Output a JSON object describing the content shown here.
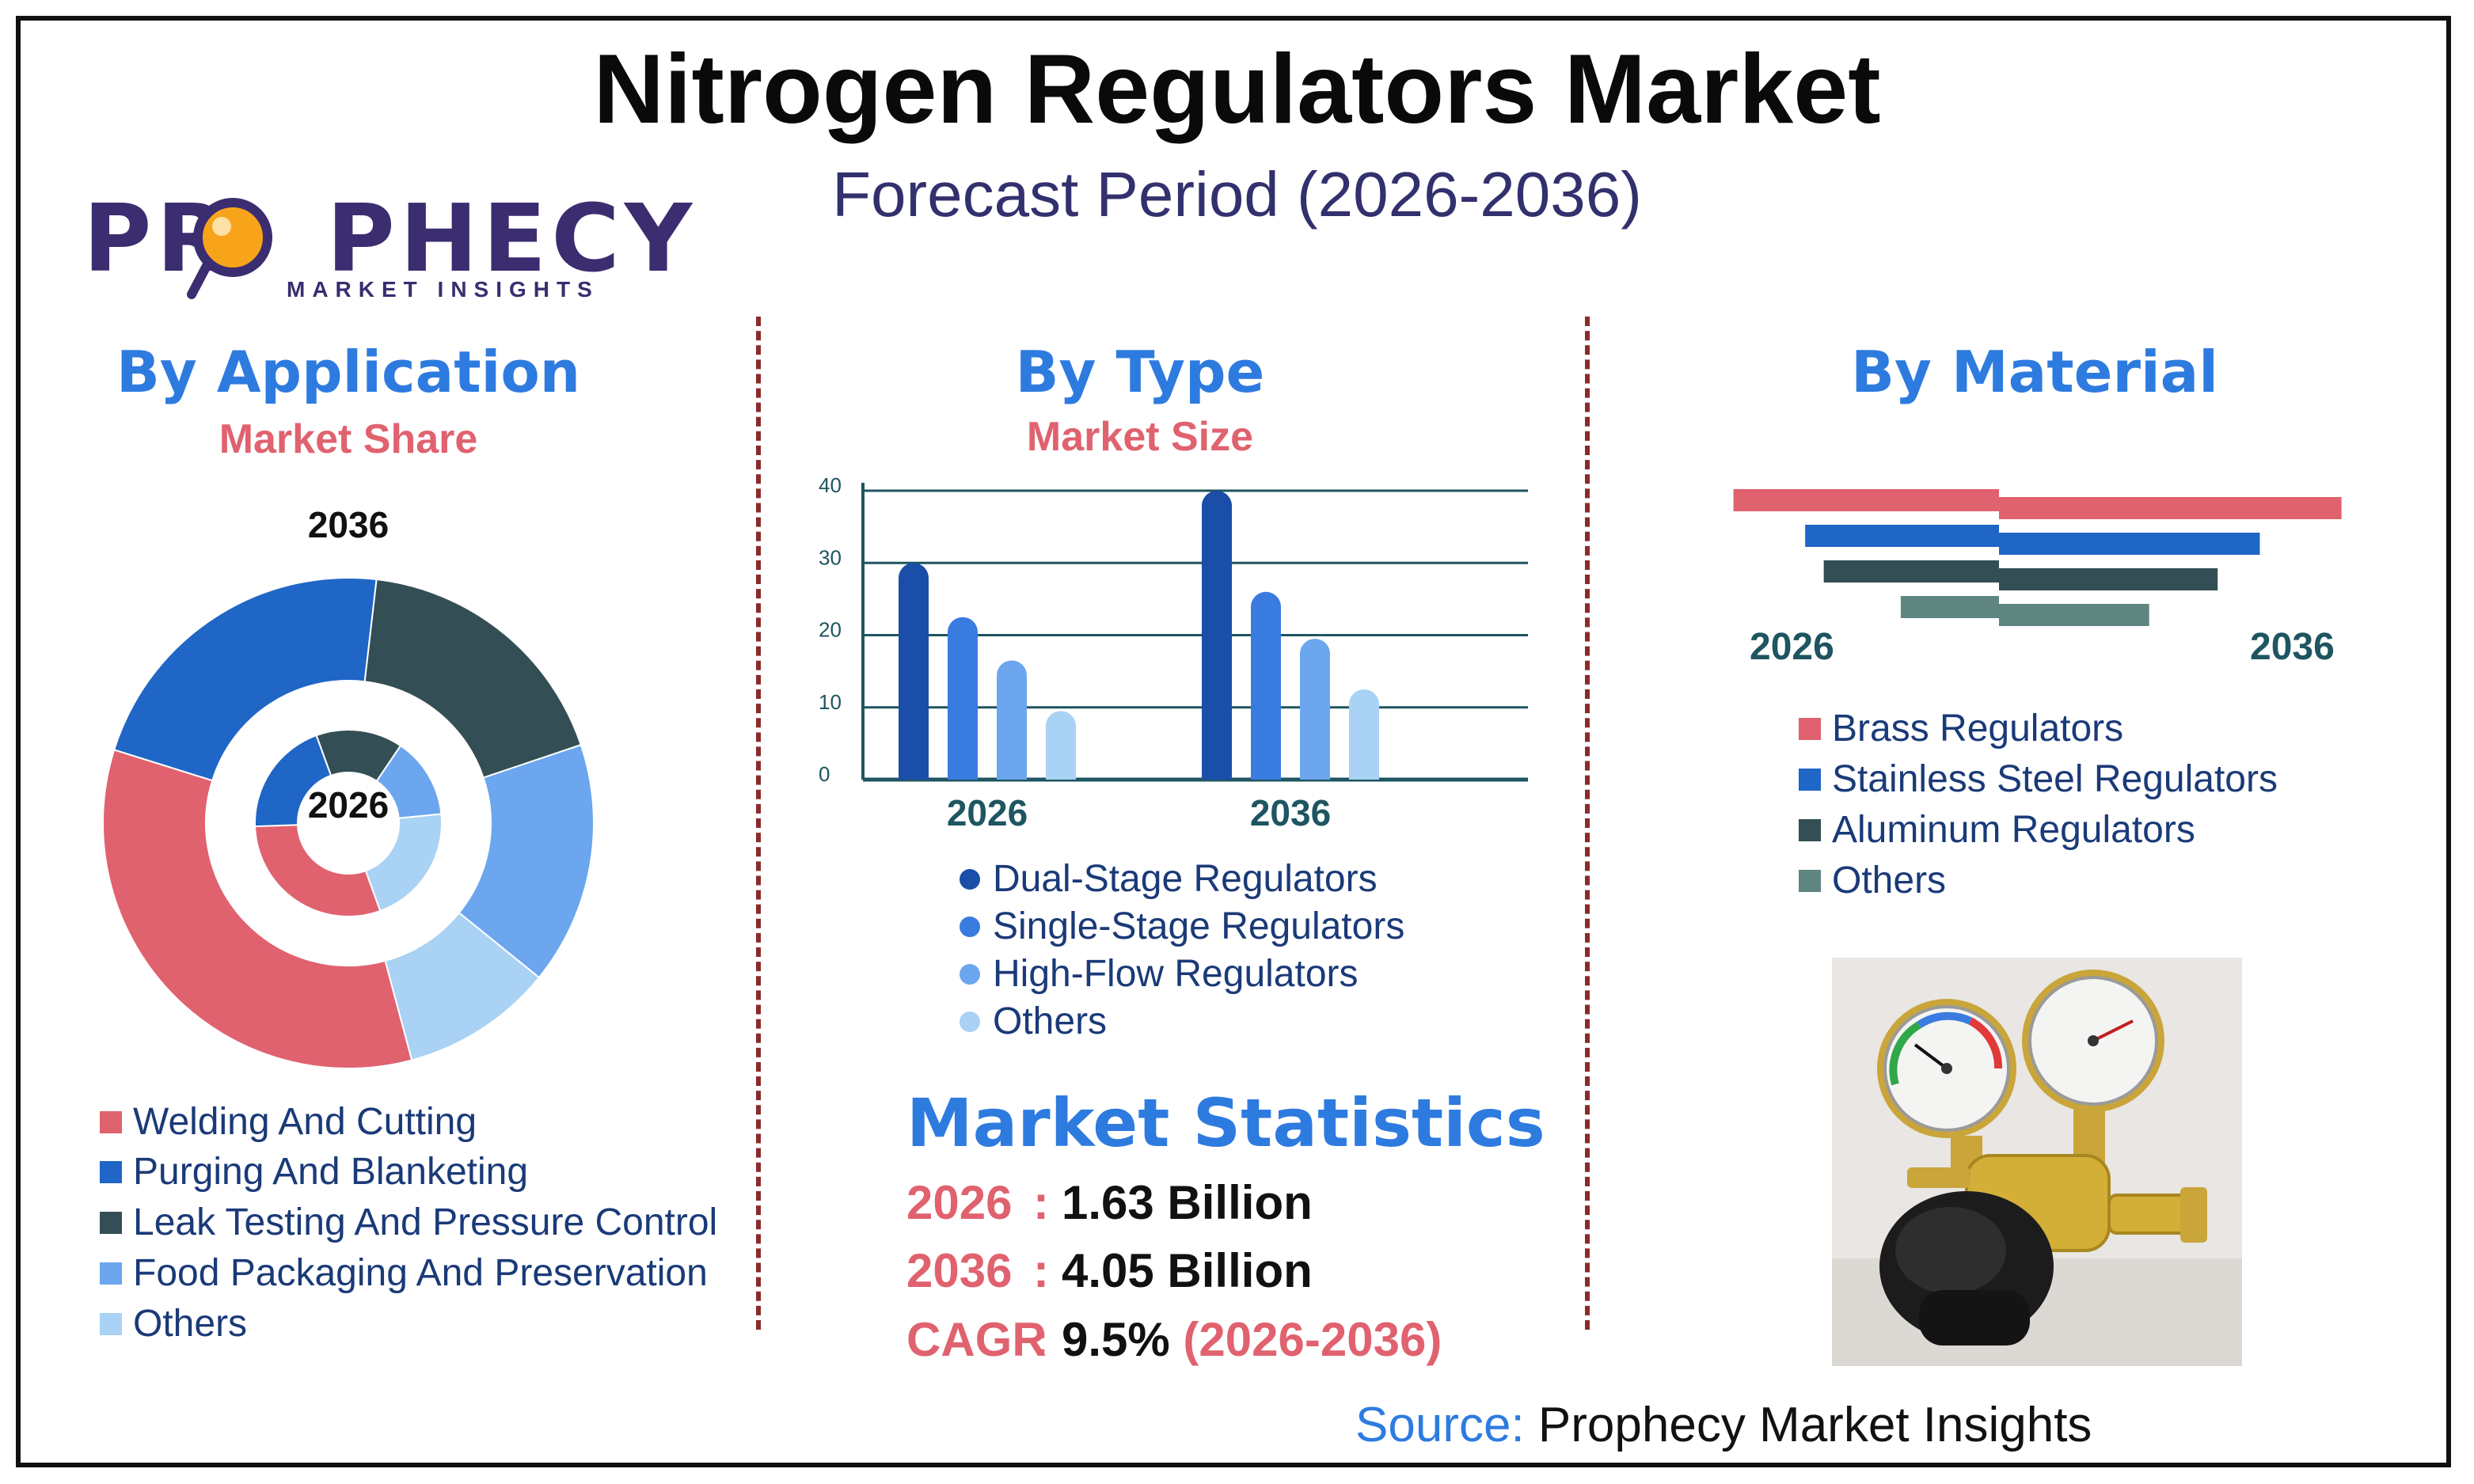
{
  "title": "Nitrogen Regulators Market",
  "subtitle": "Forecast Period (2026-2036)",
  "logo": {
    "name": "PROPHECY",
    "tagline": "MARKET INSIGHTS"
  },
  "colors": {
    "blue_title": "#2e7be0",
    "red_sub": "#e0626f",
    "navy": "#33306e"
  },
  "icons": {
    "logo_lens": "magnifier-icon",
    "product": "nitrogen-regulator-photo"
  },
  "application": {
    "title": "By Application",
    "subtitle": "Market Share",
    "outer_label": "2036",
    "inner_label": "2026",
    "legend": [
      {
        "label": "Welding And Cutting",
        "color": "#e0626f"
      },
      {
        "label": "Purging And Blanketing",
        "color": "#1f66c6"
      },
      {
        "label": "Leak Testing And Pressure Control",
        "color": "#344e55"
      },
      {
        "label": "Food Packaging And Preservation",
        "color": "#6ba6ee"
      },
      {
        "label": "Others",
        "color": "#a9d2f4"
      }
    ]
  },
  "type": {
    "title": "By Type",
    "subtitle": "Market Size",
    "legend": [
      {
        "label": "Dual-Stage Regulators",
        "color": "#1a4ea8"
      },
      {
        "label": "Single-Stage Regulators",
        "color": "#3a7be0"
      },
      {
        "label": "High-Flow Regulators",
        "color": "#6ba6ee"
      },
      {
        "label": "Others",
        "color": "#a9d2f4"
      }
    ]
  },
  "material": {
    "title": "By Material",
    "left_label": "2026",
    "right_label": "2036",
    "legend": [
      {
        "label": "Brass Regulators",
        "color": "#e0626f"
      },
      {
        "label": "Stainless Steel Regulators",
        "color": "#1f66c6"
      },
      {
        "label": "Aluminum Regulators",
        "color": "#344e55"
      },
      {
        "label": "Others",
        "color": "#5f8580"
      }
    ]
  },
  "stats": {
    "title": "Market Statistics",
    "rows": [
      {
        "key": "2026",
        "value": "1.63 Billion",
        "extra": ""
      },
      {
        "key": "2036",
        "value": "4.05 Billion",
        "extra": ""
      },
      {
        "key": "CAGR",
        "value": "9.5%",
        "extra": "(2026-2036)"
      }
    ]
  },
  "source": {
    "label": "Source:",
    "value": "Prophecy Market Insights"
  },
  "chart_data": [
    {
      "type": "pie",
      "title": "By Application",
      "subtitle": "Market Share",
      "categories": [
        "Welding And Cutting",
        "Purging And Blanketing",
        "Leak Testing And Pressure Control",
        "Food Packaging And Preservation",
        "Others"
      ],
      "series": [
        {
          "name": "2036",
          "values": [
            34,
            22,
            18,
            16,
            10
          ]
        },
        {
          "name": "2026",
          "values": [
            30,
            20,
            15,
            14,
            21
          ]
        }
      ]
    },
    {
      "type": "bar",
      "title": "By Type",
      "subtitle": "Market Size",
      "categories": [
        "2026",
        "2036"
      ],
      "ylim": [
        0,
        40
      ],
      "yticks": [
        "0",
        "10",
        "20",
        "30",
        "40"
      ],
      "grid": true,
      "series": [
        {
          "name": "Dual-Stage Regulators",
          "values": [
            30,
            40
          ]
        },
        {
          "name": "Single-Stage Regulators",
          "values": [
            22.5,
            26
          ]
        },
        {
          "name": "High-Flow Regulators",
          "values": [
            16.5,
            19.5
          ]
        },
        {
          "name": "Others",
          "values": [
            9.5,
            12.5
          ]
        }
      ]
    },
    {
      "type": "bar",
      "title": "By Material",
      "orientation": "horizontal-butterfly",
      "categories": [
        "Brass Regulators",
        "Stainless Steel Regulators",
        "Aluminum Regulators",
        "Others"
      ],
      "series": [
        {
          "name": "2026",
          "values": [
            100,
            73,
            66,
            37
          ]
        },
        {
          "name": "2036",
          "values": [
            130,
            99,
            83,
            57
          ]
        }
      ]
    }
  ]
}
